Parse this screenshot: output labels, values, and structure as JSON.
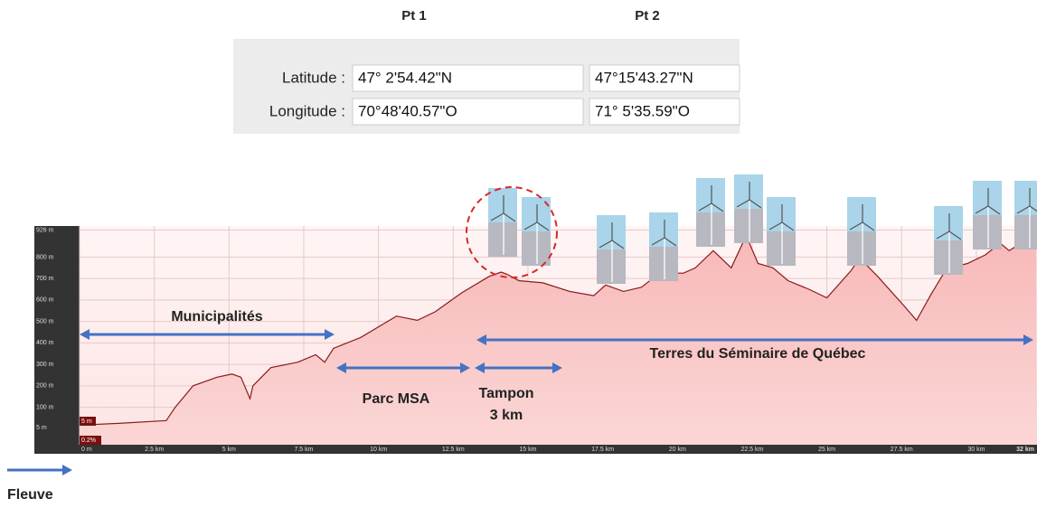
{
  "table": {
    "headers": [
      "Pt 1",
      "Pt 2"
    ],
    "rows": [
      [
        "Latitude :",
        "47° 2'54.42\"N",
        "47°15'43.27\"N"
      ],
      [
        "Longitude :",
        "70°48'40.57\"O",
        "71° 5'35.59\"O"
      ]
    ]
  },
  "chart_data": {
    "type": "area",
    "x": [
      0,
      1.3,
      2.9,
      3.2,
      3.8,
      4.6,
      5.1,
      5.4,
      5.7,
      5.8,
      6.4,
      7.3,
      7.9,
      8.2,
      8.5,
      9.4,
      10.0,
      10.6,
      11.3,
      11.9,
      12.8,
      13.7,
      14.1,
      14.3,
      14.7,
      15.5,
      16.4,
      17.2,
      17.6,
      18.2,
      18.8,
      19.4,
      20.2,
      20.6,
      21.2,
      21.8,
      22.3,
      22.7,
      23.2,
      23.7,
      24.4,
      25.0,
      25.8,
      26.1,
      26.7,
      27.6,
      28.0,
      28.5,
      29.0,
      29.7,
      30.3,
      30.8,
      31.1,
      31.5,
      32.0
    ],
    "values": [
      17,
      25,
      38,
      100,
      200,
      240,
      255,
      240,
      140,
      200,
      285,
      310,
      345,
      310,
      375,
      425,
      475,
      525,
      505,
      545,
      635,
      710,
      730,
      720,
      690,
      680,
      640,
      620,
      670,
      640,
      660,
      725,
      725,
      750,
      830,
      750,
      900,
      770,
      750,
      690,
      650,
      610,
      735,
      795,
      710,
      570,
      505,
      630,
      745,
      770,
      810,
      865,
      830,
      865,
      915
    ],
    "color": "#8b1a1a",
    "xlim": [
      0,
      32
    ],
    "ylim": [
      -45,
      945
    ],
    "xticks": [
      {
        "value": 0,
        "label": "0 m"
      },
      {
        "value": 2.5,
        "label": "2.5 km"
      },
      {
        "value": 5,
        "label": "5 km"
      },
      {
        "value": 7.5,
        "label": "7.5 km"
      },
      {
        "value": 10,
        "label": "10 km"
      },
      {
        "value": 12.5,
        "label": "12.5 km"
      },
      {
        "value": 15,
        "label": "15 km"
      },
      {
        "value": 17.5,
        "label": "17.5 km"
      },
      {
        "value": 20,
        "label": "20 km"
      },
      {
        "value": 22.5,
        "label": "22.5 km"
      },
      {
        "value": 25,
        "label": "25 km"
      },
      {
        "value": 27.5,
        "label": "27.5 km"
      },
      {
        "value": 30,
        "label": "30 km"
      },
      {
        "value": 32,
        "label": "32 km"
      }
    ],
    "yticks": [
      {
        "value": 5,
        "label": "5 m"
      },
      {
        "value": 100,
        "label": "100 m"
      },
      {
        "value": 200,
        "label": "200 m"
      },
      {
        "value": 300,
        "label": "300 m"
      },
      {
        "value": 400,
        "label": "400 m"
      },
      {
        "value": 500,
        "label": "500 m"
      },
      {
        "value": 600,
        "label": "600 m"
      },
      {
        "value": 700,
        "label": "700 m"
      },
      {
        "value": 800,
        "label": "800 m"
      },
      {
        "value": 926,
        "label": "926 m"
      }
    ],
    "grid": true,
    "annotations": [
      "Municipalités",
      "Parc MSA",
      "Tampon",
      "3 km",
      "Terres du Séminaire de Québec",
      "Fleuve",
      "5 m",
      "0.2%"
    ]
  }
}
